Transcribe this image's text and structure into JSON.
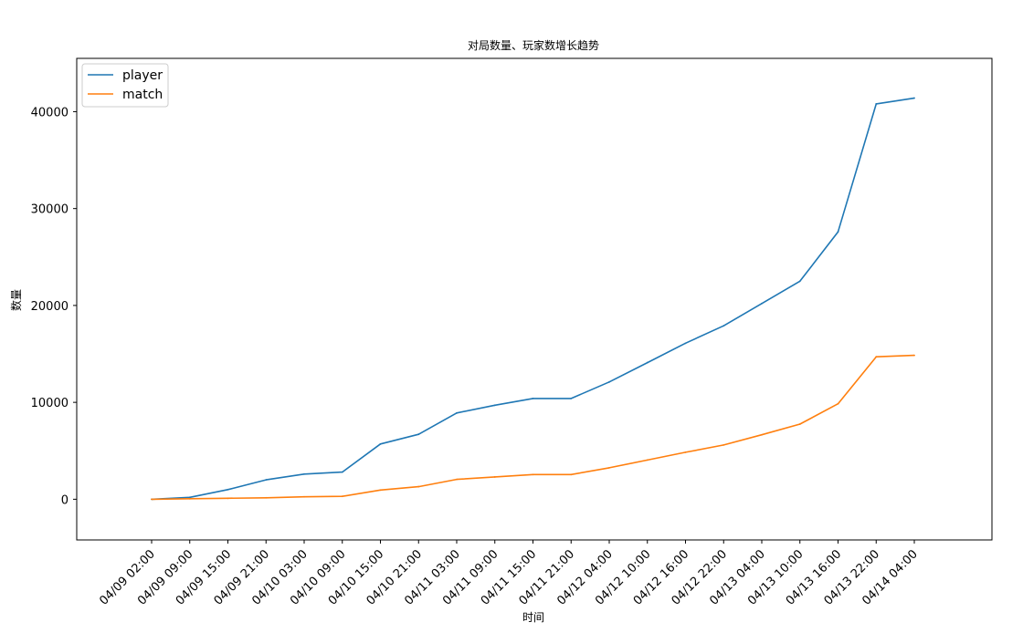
{
  "chart_data": {
    "type": "line",
    "title": "对局数量、玩家数增长趋势",
    "xlabel": "时间",
    "ylabel": "数量",
    "categories": [
      "04/09 02:00",
      "04/09 09:00",
      "04/09 15:00",
      "04/09 21:00",
      "04/10 03:00",
      "04/10 09:00",
      "04/10 15:00",
      "04/10 21:00",
      "04/11 03:00",
      "04/11 09:00",
      "04/11 15:00",
      "04/11 21:00",
      "04/12 04:00",
      "04/12 10:00",
      "04/12 16:00",
      "04/12 22:00",
      "04/13 04:00",
      "04/13 10:00",
      "04/13 16:00",
      "04/13 22:00",
      "04/14 04:00"
    ],
    "series": [
      {
        "name": "player",
        "color": "#1f77b4",
        "values": [
          0,
          200,
          1000,
          2000,
          2600,
          2800,
          5700,
          6700,
          8900,
          9700,
          10400,
          10400,
          12100,
          14100,
          16100,
          17900,
          20200,
          22500,
          27600,
          40800,
          41400
        ]
      },
      {
        "name": "match",
        "color": "#ff7f0e",
        "values": [
          0,
          50,
          100,
          150,
          250,
          300,
          950,
          1300,
          2050,
          2300,
          2550,
          2550,
          3250,
          4050,
          4850,
          5600,
          6650,
          7750,
          9850,
          14700,
          14850
        ]
      }
    ],
    "yticks": [
      0,
      10000,
      20000,
      30000,
      40000
    ],
    "ylim": [
      -4200,
      45500
    ],
    "grid": false,
    "legend_position": "top-left"
  }
}
